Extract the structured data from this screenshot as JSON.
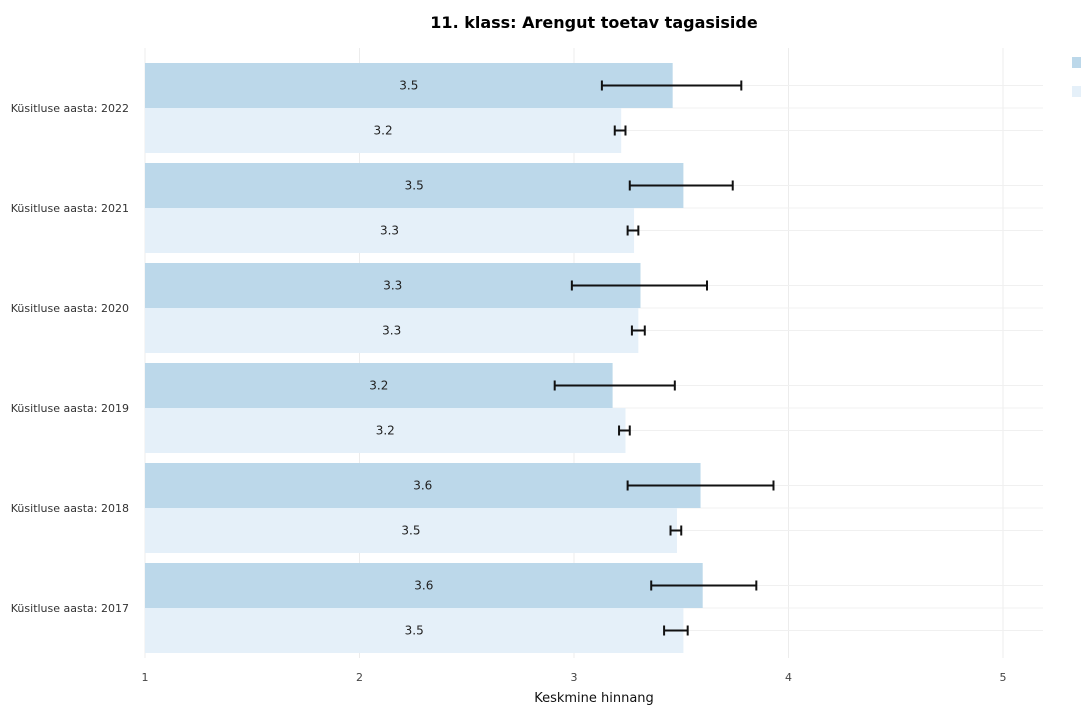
{
  "chart_data": {
    "type": "bar",
    "orientation": "horizontal",
    "title": "11. klass: Arengut toetav tagasiside",
    "xlabel": "Keskmine hinnang",
    "ylabel": "",
    "xlim": [
      1,
      5.2
    ],
    "xticks": [
      1,
      2,
      3,
      4,
      5
    ],
    "grid": true,
    "legend_position": "top-right",
    "categories": [
      "Küsitluse aasta: 2022",
      "Küsitluse aasta: 2021",
      "Küsitluse aasta: 2020",
      "Küsitluse aasta: 2019",
      "Küsitluse aasta: 2018",
      "Küsitluse aasta: 2017"
    ],
    "series": [
      {
        "color": "#bcd8ea",
        "values": [
          3.46,
          3.51,
          3.31,
          3.18,
          3.59,
          3.6
        ],
        "labels": [
          "3.5",
          "3.5",
          "3.3",
          "3.2",
          "3.6",
          "3.6"
        ],
        "error_low": [
          3.13,
          3.26,
          2.99,
          2.91,
          3.25,
          3.36
        ],
        "error_high": [
          3.78,
          3.74,
          3.62,
          3.47,
          3.93,
          3.85
        ]
      },
      {
        "color": "#e5f0f9",
        "values": [
          3.22,
          3.28,
          3.3,
          3.24,
          3.48,
          3.51
        ],
        "labels": [
          "3.2",
          "3.3",
          "3.3",
          "3.2",
          "3.5",
          "3.5"
        ],
        "error_low": [
          3.19,
          3.25,
          3.27,
          3.21,
          3.45,
          3.42
        ],
        "error_high": [
          3.24,
          3.3,
          3.33,
          3.26,
          3.5,
          3.53
        ]
      }
    ]
  }
}
